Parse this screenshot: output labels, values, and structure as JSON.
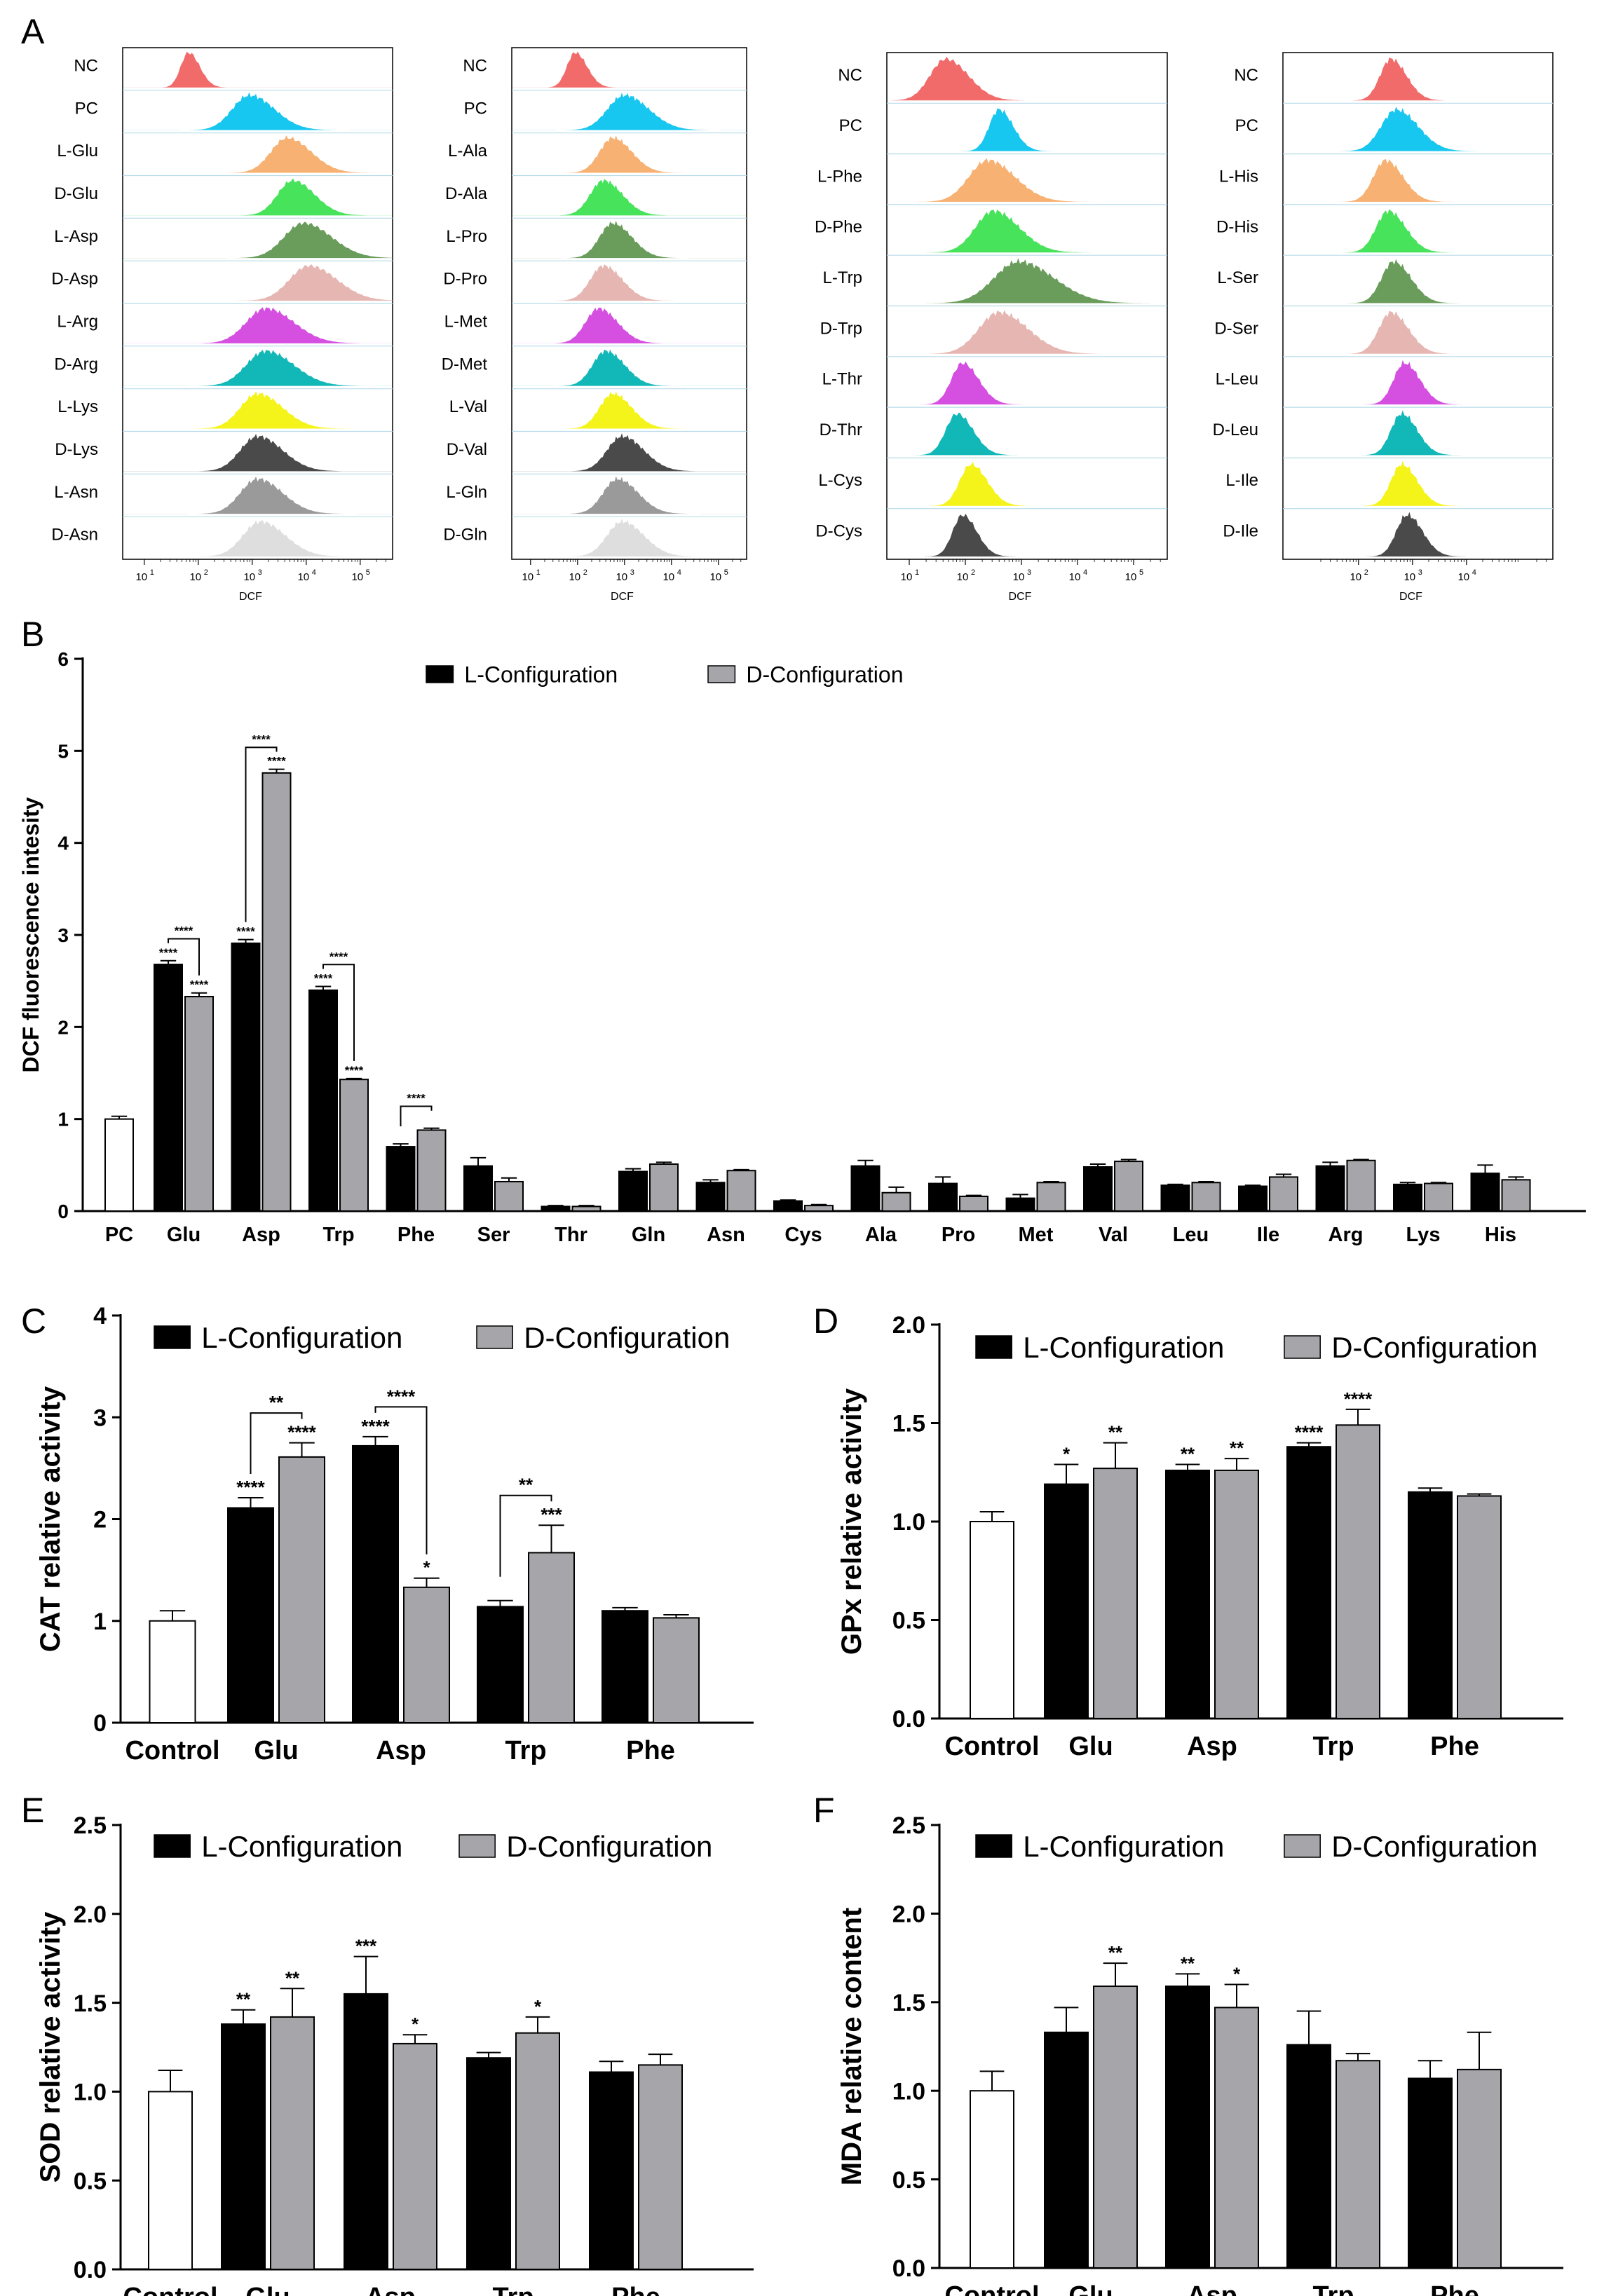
{
  "panel_letters": [
    "A",
    "B",
    "C",
    "D",
    "E",
    "F"
  ],
  "colors": {
    "l_bar": "#000000",
    "d_bar": "#a6a6aa",
    "pc_bar": "#ffffff",
    "hist": [
      "#f26b6b",
      "#17c7ef",
      "#f7b173",
      "#46e35b",
      "#6a9d5b",
      "#e6b6b2",
      "#d54fe1",
      "#12b8b8",
      "#f4f41a",
      "#4a4a4a",
      "#9a9a9a",
      "#dedede"
    ]
  },
  "chart_data": [
    {
      "panel": "A",
      "type": "histogram",
      "xlabel": "DCF",
      "axis_ticks": [
        "10",
        "10",
        "10",
        "10",
        "10"
      ],
      "axis_exps": [
        "1",
        "2",
        "3",
        "4",
        "5"
      ],
      "subplots": [
        {
          "labels": [
            "NC",
            "PC",
            "L-Glu",
            "D-Glu",
            "L-Asp",
            "D-Asp",
            "L-Arg",
            "D-Arg",
            "L-Lys",
            "D-Lys",
            "L-Asn",
            "D-Asn"
          ],
          "peaks": [
            1.82,
            2.95,
            3.65,
            3.75,
            3.95,
            4.05,
            3.25,
            3.25,
            3.1,
            3.1,
            3.1,
            3.15
          ],
          "widths": [
            0.18,
            0.4,
            0.38,
            0.35,
            0.45,
            0.45,
            0.45,
            0.45,
            0.4,
            0.4,
            0.4,
            0.4
          ]
        },
        {
          "labels": [
            "NC",
            "PC",
            "L-Ala",
            "D-Ala",
            "L-Pro",
            "D-Pro",
            "L-Met",
            "D-Met",
            "L-Val",
            "D-Val",
            "L-Gln",
            "D-Gln"
          ],
          "peaks": [
            1.95,
            3.0,
            2.75,
            2.55,
            2.75,
            2.55,
            2.45,
            2.6,
            2.75,
            2.95,
            2.85,
            2.95
          ],
          "widths": [
            0.22,
            0.45,
            0.35,
            0.35,
            0.35,
            0.35,
            0.35,
            0.35,
            0.35,
            0.4,
            0.38,
            0.4
          ]
        },
        {
          "labels": [
            "NC",
            "PC",
            "L-Phe",
            "D-Phe",
            "L-Trp",
            "D-Trp",
            "L-Thr",
            "D-Thr",
            "L-Cys",
            "D-Cys"
          ],
          "peaks": [
            1.65,
            2.6,
            2.4,
            2.5,
            2.95,
            2.6,
            1.95,
            1.85,
            2.1,
            1.95
          ],
          "widths": [
            0.35,
            0.22,
            0.42,
            0.4,
            0.55,
            0.45,
            0.25,
            0.25,
            0.25,
            0.22
          ]
        },
        {
          "labels": [
            "NC",
            "PC",
            "L-His",
            "D-His",
            "L-Ser",
            "D-Ser",
            "L-Leu",
            "D-Leu",
            "L-Ile",
            "D-Ile"
          ],
          "peaks": [
            2.6,
            2.7,
            2.5,
            2.55,
            2.65,
            2.6,
            2.85,
            2.8,
            2.8,
            2.9
          ],
          "widths": [
            0.25,
            0.35,
            0.28,
            0.28,
            0.28,
            0.28,
            0.25,
            0.25,
            0.25,
            0.25
          ]
        }
      ]
    },
    {
      "panel": "B",
      "type": "bar",
      "ylabel": "DCF fluorescence intesity",
      "ylim": [
        0,
        6
      ],
      "yticks": [
        "0",
        "1",
        "2",
        "3",
        "4",
        "5",
        "6"
      ],
      "legend": [
        "L-Configuration",
        "D-Configuration"
      ],
      "control_label": "PC",
      "control_value": 1.0,
      "control_err": 0.03,
      "categories": [
        "Glu",
        "Asp",
        "Trp",
        "Phe",
        "Ser",
        "Thr",
        "Gln",
        "Asn",
        "Cys",
        "Ala",
        "Pro",
        "Met",
        "Val",
        "Leu",
        "Ile",
        "Arg",
        "Lys",
        "His"
      ],
      "series": [
        {
          "name": "L-Configuration",
          "values": [
            2.68,
            2.91,
            2.4,
            0.7,
            0.49,
            0.05,
            0.43,
            0.31,
            0.11,
            0.49,
            0.3,
            0.14,
            0.48,
            0.28,
            0.27,
            0.49,
            0.29,
            0.41
          ],
          "err": [
            0.04,
            0.04,
            0.04,
            0.03,
            0.09,
            0.01,
            0.03,
            0.03,
            0.01,
            0.06,
            0.07,
            0.04,
            0.03,
            0.01,
            0.01,
            0.04,
            0.02,
            0.09
          ],
          "sig": [
            "****",
            "****",
            "****",
            "",
            "",
            "",
            "",
            "",
            "",
            "",
            "",
            "",
            "",
            "",
            "",
            "",
            "",
            ""
          ]
        },
        {
          "name": "D-Configuration",
          "values": [
            2.33,
            4.76,
            1.43,
            0.88,
            0.32,
            0.05,
            0.51,
            0.44,
            0.06,
            0.2,
            0.16,
            0.31,
            0.54,
            0.31,
            0.37,
            0.55,
            0.3,
            0.34
          ],
          "err": [
            0.04,
            0.04,
            0.01,
            0.02,
            0.04,
            0.01,
            0.02,
            0.01,
            0.01,
            0.06,
            0.01,
            0.01,
            0.02,
            0.01,
            0.03,
            0.01,
            0.01,
            0.03
          ],
          "sig": [
            "****",
            "****",
            "****",
            "",
            "",
            "",
            "",
            "",
            "",
            "",
            "",
            "",
            "",
            "",
            "",
            "",
            "",
            ""
          ]
        }
      ],
      "brackets": [
        {
          "cat": 0,
          "label": "****"
        },
        {
          "cat": 1,
          "label": "****"
        },
        {
          "cat": 2,
          "label": "****"
        },
        {
          "cat": 3,
          "label": "****"
        }
      ]
    },
    {
      "panel": "C",
      "type": "bar",
      "ylabel": "CAT relative activity",
      "ylim": [
        0,
        4
      ],
      "yticks": [
        "0",
        "1",
        "2",
        "3",
        "4"
      ],
      "legend": [
        "L-Configuration",
        "D-Configuration"
      ],
      "control_label": "Control",
      "control_value": 1.0,
      "control_err": 0.1,
      "categories": [
        "Glu",
        "Asp",
        "Trp",
        "Phe"
      ],
      "series": [
        {
          "name": "L-Configuration",
          "values": [
            2.11,
            2.72,
            1.14,
            1.1
          ],
          "err": [
            0.1,
            0.09,
            0.06,
            0.03
          ],
          "sig": [
            "****",
            "****",
            "",
            ""
          ]
        },
        {
          "name": "D-Configuration",
          "values": [
            2.61,
            1.33,
            1.67,
            1.03
          ],
          "err": [
            0.14,
            0.09,
            0.27,
            0.03
          ],
          "sig": [
            "****",
            "*",
            "***",
            ""
          ]
        }
      ],
      "brackets": [
        {
          "cat": 0,
          "label": "**"
        },
        {
          "cat": 1,
          "label": "****"
        },
        {
          "cat": 2,
          "label": "**"
        }
      ]
    },
    {
      "panel": "D",
      "type": "bar",
      "ylabel": "GPx relative activity",
      "ylim": [
        0,
        2.0
      ],
      "yticks": [
        "0.0",
        "0.5",
        "1.0",
        "1.5",
        "2.0"
      ],
      "legend": [
        "L-Configuration",
        "D-Configuration"
      ],
      "control_label": "Control",
      "control_value": 1.0,
      "control_err": 0.05,
      "categories": [
        "Glu",
        "Asp",
        "Trp",
        "Phe"
      ],
      "series": [
        {
          "name": "L-Configuration",
          "values": [
            1.19,
            1.26,
            1.38,
            1.15
          ],
          "err": [
            0.1,
            0.03,
            0.02,
            0.02
          ],
          "sig": [
            "*",
            "**",
            "****",
            ""
          ]
        },
        {
          "name": "D-Configuration",
          "values": [
            1.27,
            1.26,
            1.49,
            1.13
          ],
          "err": [
            0.13,
            0.06,
            0.08,
            0.01
          ],
          "sig": [
            "**",
            "**",
            "****",
            ""
          ]
        }
      ],
      "brackets": []
    },
    {
      "panel": "E",
      "type": "bar",
      "ylabel": "SOD relative activity",
      "ylim": [
        0,
        2.5
      ],
      "yticks": [
        "0.0",
        "0.5",
        "1.0",
        "1.5",
        "2.0",
        "2.5"
      ],
      "legend": [
        "L-Configuration",
        "D-Configuration"
      ],
      "control_label": "Control",
      "control_value": 1.0,
      "control_err": 0.12,
      "categories": [
        "Glu",
        "Asp",
        "Trp",
        "Phe"
      ],
      "series": [
        {
          "name": "L-Configuration",
          "values": [
            1.38,
            1.55,
            1.19,
            1.11
          ],
          "err": [
            0.08,
            0.21,
            0.03,
            0.06
          ],
          "sig": [
            "**",
            "***",
            "",
            ""
          ]
        },
        {
          "name": "D-Configuration",
          "values": [
            1.42,
            1.27,
            1.33,
            1.15
          ],
          "err": [
            0.16,
            0.05,
            0.09,
            0.06
          ],
          "sig": [
            "**",
            "*",
            "*",
            ""
          ]
        }
      ],
      "brackets": []
    },
    {
      "panel": "F",
      "type": "bar",
      "ylabel": "MDA relative content",
      "ylim": [
        0,
        2.5
      ],
      "yticks": [
        "0.0",
        "0.5",
        "1.0",
        "1.5",
        "2.0",
        "2.5"
      ],
      "legend": [
        "L-Configuration",
        "D-Configuration"
      ],
      "control_label": "Control",
      "control_value": 1.0,
      "control_err": 0.11,
      "categories": [
        "Glu",
        "Asp",
        "Trp",
        "Phe"
      ],
      "series": [
        {
          "name": "L-Configuration",
          "values": [
            1.33,
            1.59,
            1.26,
            1.07
          ],
          "err": [
            0.14,
            0.07,
            0.19,
            0.1
          ],
          "sig": [
            "",
            "**",
            "",
            ""
          ]
        },
        {
          "name": "D-Configuration",
          "values": [
            1.59,
            1.47,
            1.17,
            1.12
          ],
          "err": [
            0.13,
            0.13,
            0.04,
            0.21
          ],
          "sig": [
            "**",
            "*",
            "",
            ""
          ]
        }
      ],
      "brackets": []
    }
  ]
}
